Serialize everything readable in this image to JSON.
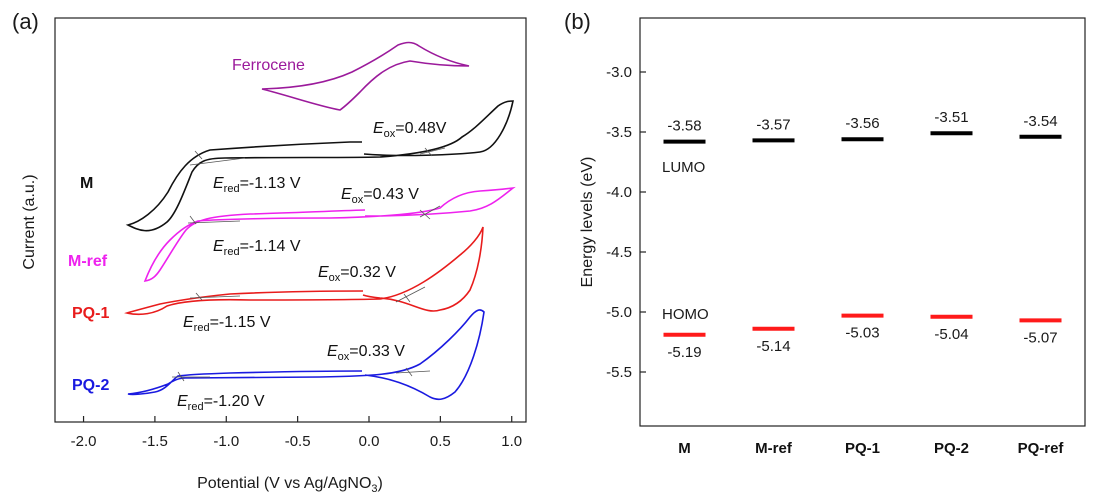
{
  "chart_data": [
    {
      "panel": "(a)",
      "type": "line",
      "xlabel": "Potential (V vs Ag/AgNO",
      "xlabel_sub": "3",
      "xlabel_end": ")",
      "ylabel": "Current (a.u.)",
      "xlim": [
        -2.2,
        1.1
      ],
      "xticks": [
        "-2.0",
        "-1.5",
        "-1.0",
        "-0.5",
        "0.0",
        "0.5",
        "1.0"
      ],
      "series": [
        {
          "name": "Ferrocene",
          "color": "#9b1a9b",
          "annotations": []
        },
        {
          "name": "M",
          "color": "#111111",
          "annotations": [
            {
              "kind": "E",
              "sub": "ox",
              "text": "=0.48V"
            },
            {
              "kind": "E",
              "sub": "red",
              "text": "=-1.13 V"
            }
          ]
        },
        {
          "name": "M-ref",
          "color": "#ee22ee",
          "annotations": [
            {
              "kind": "E",
              "sub": "ox",
              "text": "=0.43 V"
            },
            {
              "kind": "E",
              "sub": "red",
              "text": "=-1.14 V"
            }
          ]
        },
        {
          "name": "PQ-1",
          "color": "#e81c1c",
          "annotations": [
            {
              "kind": "E",
              "sub": "ox",
              "text": "=0.32 V"
            },
            {
              "kind": "E",
              "sub": "red",
              "text": "=-1.15 V"
            }
          ]
        },
        {
          "name": "PQ-2",
          "color": "#1a1ae0",
          "annotations": [
            {
              "kind": "E",
              "sub": "ox",
              "text": "=0.33 V"
            },
            {
              "kind": "E",
              "sub": "red",
              "text": "=-1.20 V"
            }
          ]
        }
      ]
    },
    {
      "panel": "(b)",
      "type": "bar",
      "ylabel": "Energy levels (eV)",
      "ylim": [
        -5.95,
        -2.55
      ],
      "yticks": [
        "-3.0",
        "-3.5",
        "-4.0",
        "-4.5",
        "-5.0",
        "-5.5"
      ],
      "categories": [
        "M",
        "M-ref",
        "PQ-1",
        "PQ-2",
        "PQ-ref"
      ],
      "series": [
        {
          "name": "LUMO",
          "color": "#000000",
          "values": [
            -3.58,
            -3.57,
            -3.56,
            -3.51,
            -3.54
          ],
          "labels": [
            "-3.58",
            "-3.57",
            "-3.56",
            "-3.51",
            "-3.54"
          ]
        },
        {
          "name": "HOMO",
          "color": "#ff1a1a",
          "values": [
            -5.19,
            -5.14,
            -5.03,
            -5.04,
            -5.07
          ],
          "labels": [
            "-5.19",
            "-5.14",
            "-5.03",
            "-5.04",
            "-5.07"
          ]
        }
      ]
    }
  ]
}
